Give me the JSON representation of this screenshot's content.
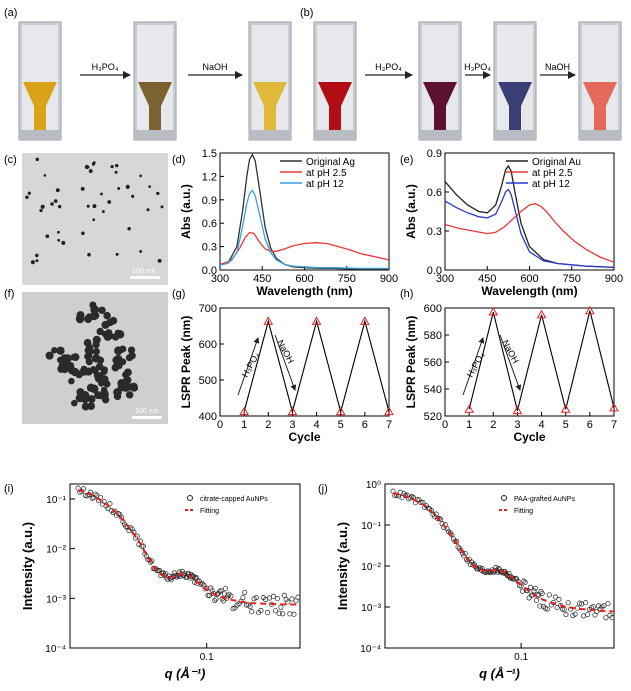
{
  "labels": {
    "a": "(a)",
    "b": "(b)",
    "c": "(c)",
    "d": "(d)",
    "e": "(e)",
    "f": "(f)",
    "g": "(g)",
    "h": "(h)",
    "i": "(i)",
    "j": "(j)"
  },
  "panel_a": {
    "arrow1_label": "H₃PO₄",
    "arrow2_label": "NaOH",
    "vials": [
      {
        "color": "#d9a418"
      },
      {
        "color": "#7c6232"
      },
      {
        "color": "#e0b83a"
      }
    ]
  },
  "panel_b": {
    "arrow1_label": "H₃PO₄",
    "arrow2_label": "H₃PO₄",
    "arrow3_label": "NaOH",
    "vials": [
      {
        "color": "#b00e14"
      },
      {
        "color": "#5e1232"
      },
      {
        "color": "#3a3e74"
      },
      {
        "color": "#e36a5a"
      }
    ]
  },
  "panel_c": {
    "scale_bar": "100 nm"
  },
  "panel_f": {
    "scale_bar": "100 nm"
  },
  "chart_data": [
    {
      "id": "d",
      "type": "line",
      "xlabel": "Wavelength (nm)",
      "ylabel": "Abs (a.u.)",
      "xlim": [
        300,
        900
      ],
      "ylim": [
        0,
        1.5
      ],
      "xticks": [
        300,
        450,
        600,
        750,
        900
      ],
      "yticks": [
        0.0,
        0.3,
        0.6,
        0.9,
        1.2,
        1.5
      ],
      "series": [
        {
          "name": "Original Ag",
          "color": "#333333",
          "x": [
            300,
            330,
            360,
            380,
            395,
            405,
            415,
            425,
            440,
            460,
            480,
            500,
            530,
            560,
            600,
            650,
            700,
            800,
            900
          ],
          "y": [
            0.07,
            0.1,
            0.3,
            0.75,
            1.2,
            1.42,
            1.48,
            1.4,
            1.05,
            0.55,
            0.28,
            0.15,
            0.07,
            0.04,
            0.03,
            0.02,
            0.02,
            0.01,
            0.01
          ]
        },
        {
          "name": "at pH 2.5",
          "color": "#e83838",
          "x": [
            300,
            340,
            370,
            390,
            405,
            420,
            440,
            460,
            480,
            500,
            530,
            560,
            600,
            640,
            680,
            720,
            760,
            800,
            850,
            900
          ],
          "y": [
            0.07,
            0.12,
            0.28,
            0.42,
            0.48,
            0.47,
            0.36,
            0.27,
            0.24,
            0.24,
            0.27,
            0.31,
            0.34,
            0.35,
            0.34,
            0.3,
            0.26,
            0.21,
            0.17,
            0.13
          ]
        },
        {
          "name": "at pH 12",
          "color": "#3aa0e0",
          "x": [
            300,
            330,
            360,
            380,
            395,
            405,
            415,
            425,
            440,
            460,
            480,
            500,
            530,
            560,
            600,
            650,
            700,
            800,
            900
          ],
          "y": [
            0.06,
            0.09,
            0.22,
            0.55,
            0.85,
            0.98,
            1.02,
            0.95,
            0.72,
            0.4,
            0.22,
            0.13,
            0.07,
            0.05,
            0.04,
            0.03,
            0.03,
            0.02,
            0.02
          ]
        }
      ]
    },
    {
      "id": "e",
      "type": "line",
      "xlabel": "Wavelength (nm)",
      "ylabel": "Abs (a.u.)",
      "xlim": [
        300,
        900
      ],
      "ylim": [
        0,
        0.9
      ],
      "xticks": [
        300,
        450,
        600,
        750,
        900
      ],
      "yticks": [
        0.0,
        0.3,
        0.6,
        0.9
      ],
      "series": [
        {
          "name": "Original Au",
          "color": "#222222",
          "x": [
            300,
            340,
            380,
            420,
            450,
            480,
            500,
            515,
            525,
            535,
            550,
            570,
            600,
            650,
            700,
            800,
            900
          ],
          "y": [
            0.68,
            0.58,
            0.5,
            0.45,
            0.44,
            0.5,
            0.64,
            0.77,
            0.8,
            0.76,
            0.58,
            0.36,
            0.18,
            0.08,
            0.05,
            0.03,
            0.02
          ]
        },
        {
          "name": "at pH 2.5",
          "color": "#e83838",
          "x": [
            300,
            350,
            400,
            450,
            480,
            510,
            540,
            570,
            600,
            620,
            640,
            660,
            690,
            720,
            760,
            800,
            850,
            900
          ],
          "y": [
            0.35,
            0.32,
            0.3,
            0.28,
            0.29,
            0.33,
            0.39,
            0.45,
            0.5,
            0.51,
            0.49,
            0.45,
            0.37,
            0.3,
            0.22,
            0.16,
            0.1,
            0.06
          ]
        },
        {
          "name": "at pH 12",
          "color": "#2838d0",
          "x": [
            300,
            340,
            380,
            420,
            450,
            480,
            500,
            515,
            525,
            535,
            550,
            570,
            600,
            650,
            700,
            800,
            900
          ],
          "y": [
            0.53,
            0.48,
            0.44,
            0.41,
            0.4,
            0.43,
            0.52,
            0.6,
            0.62,
            0.58,
            0.45,
            0.28,
            0.14,
            0.07,
            0.05,
            0.03,
            0.02
          ]
        }
      ]
    },
    {
      "id": "g",
      "type": "line",
      "xlabel": "Cycle",
      "ylabel": "LSPR Peak (nm)",
      "xlim": [
        0,
        7
      ],
      "ylim": [
        400,
        700
      ],
      "xticks": [
        0,
        1,
        2,
        3,
        4,
        5,
        6,
        7
      ],
      "yticks": [
        400,
        500,
        600,
        700
      ],
      "annotations": [
        "H₃PO₄",
        "NaOH"
      ],
      "series": [
        {
          "x": [
            1,
            2,
            3,
            4,
            5,
            6,
            7
          ],
          "y": [
            412,
            663,
            412,
            663,
            412,
            663,
            412
          ]
        }
      ]
    },
    {
      "id": "h",
      "type": "line",
      "xlabel": "Cycle",
      "ylabel": "LSPR Peak (nm)",
      "xlim": [
        0,
        7
      ],
      "ylim": [
        520,
        600
      ],
      "xticks": [
        0,
        1,
        2,
        3,
        4,
        5,
        6,
        7
      ],
      "yticks": [
        520,
        540,
        560,
        580,
        600
      ],
      "annotations": [
        "H₃PO₄",
        "NaOH"
      ],
      "series": [
        {
          "x": [
            1,
            2,
            3,
            4,
            5,
            6,
            7
          ],
          "y": [
            525,
            597,
            524,
            595,
            525,
            598,
            526
          ]
        }
      ]
    },
    {
      "id": "i",
      "type": "scatter",
      "xlabel": "q (Å⁻¹)",
      "ylabel": "Intensity (a.u.)",
      "xscale": "log",
      "yscale": "log",
      "xlim": [
        0.02,
        0.3
      ],
      "ylim": [
        0.0001,
        0.2
      ],
      "xtick_labels": [
        "0.1"
      ],
      "ytick_labels": [
        "10⁻¹",
        "10⁻²",
        "10⁻³",
        "10⁻⁴"
      ],
      "legend": "top-right",
      "series": [
        {
          "name": "citrate-capped AuNPs",
          "style": "open-circles",
          "x": [
            0.022,
            0.025,
            0.028,
            0.032,
            0.036,
            0.04,
            0.045,
            0.05,
            0.055,
            0.06,
            0.065,
            0.07,
            0.075,
            0.08,
            0.085,
            0.09,
            0.1,
            0.11,
            0.12,
            0.13,
            0.15,
            0.17,
            0.2,
            0.23,
            0.26,
            0.3
          ],
          "y": [
            0.15,
            0.13,
            0.1,
            0.07,
            0.045,
            0.027,
            0.014,
            0.0068,
            0.0037,
            0.0028,
            0.0026,
            0.0029,
            0.0031,
            0.003,
            0.0026,
            0.0021,
            0.0015,
            0.0012,
            0.00105,
            0.00095,
            0.00085,
            0.0008,
            0.00078,
            0.00076,
            0.00075,
            0.00075
          ]
        },
        {
          "name": "Fitting",
          "style": "dashed",
          "color": "#e82020",
          "x": [
            0.022,
            0.025,
            0.028,
            0.032,
            0.036,
            0.04,
            0.045,
            0.05,
            0.055,
            0.06,
            0.065,
            0.07,
            0.075,
            0.08,
            0.085,
            0.09,
            0.1,
            0.11,
            0.12,
            0.13,
            0.15,
            0.17,
            0.2,
            0.23,
            0.26,
            0.3
          ],
          "y": [
            0.15,
            0.13,
            0.1,
            0.07,
            0.045,
            0.027,
            0.014,
            0.0068,
            0.0037,
            0.0028,
            0.0026,
            0.0029,
            0.0031,
            0.003,
            0.0026,
            0.0021,
            0.0015,
            0.0012,
            0.00105,
            0.00095,
            0.00085,
            0.0008,
            0.00078,
            0.00076,
            0.00075,
            0.00075
          ]
        }
      ]
    },
    {
      "id": "j",
      "type": "scatter",
      "xlabel": "q (Å⁻¹)",
      "ylabel": "Intensity (a.u.)",
      "xscale": "log",
      "yscale": "log",
      "xlim": [
        0.02,
        0.3
      ],
      "ylim": [
        0.0001,
        1
      ],
      "xtick_labels": [
        "0.1"
      ],
      "ytick_labels": [
        "10⁰",
        "10⁻¹",
        "10⁻²",
        "10⁻³",
        "10⁻⁴"
      ],
      "legend": "top-right",
      "series": [
        {
          "name": "PAA-grafted AuNPs",
          "style": "open-circles",
          "x": [
            0.022,
            0.025,
            0.028,
            0.032,
            0.036,
            0.04,
            0.045,
            0.05,
            0.055,
            0.06,
            0.065,
            0.07,
            0.075,
            0.08,
            0.085,
            0.09,
            0.1,
            0.11,
            0.12,
            0.13,
            0.15,
            0.17,
            0.2,
            0.23,
            0.26,
            0.3
          ],
          "y": [
            0.6,
            0.52,
            0.42,
            0.3,
            0.18,
            0.1,
            0.048,
            0.022,
            0.012,
            0.0085,
            0.0075,
            0.0078,
            0.008,
            0.0075,
            0.0064,
            0.0052,
            0.0035,
            0.0024,
            0.0018,
            0.0015,
            0.0012,
            0.001,
            0.0009,
            0.00085,
            0.0008,
            0.00078
          ]
        },
        {
          "name": "Fitting",
          "style": "dashed",
          "color": "#e82020",
          "x": [
            0.022,
            0.025,
            0.028,
            0.032,
            0.036,
            0.04,
            0.045,
            0.05,
            0.055,
            0.06,
            0.065,
            0.07,
            0.075,
            0.08,
            0.085,
            0.09,
            0.1,
            0.11,
            0.12,
            0.13,
            0.15,
            0.17,
            0.2,
            0.23,
            0.26,
            0.3
          ],
          "y": [
            0.6,
            0.52,
            0.42,
            0.3,
            0.18,
            0.1,
            0.048,
            0.022,
            0.012,
            0.0085,
            0.0075,
            0.0078,
            0.008,
            0.0075,
            0.0064,
            0.0052,
            0.0035,
            0.0024,
            0.0018,
            0.0015,
            0.0012,
            0.001,
            0.0009,
            0.00085,
            0.0008,
            0.00078
          ]
        }
      ]
    }
  ]
}
